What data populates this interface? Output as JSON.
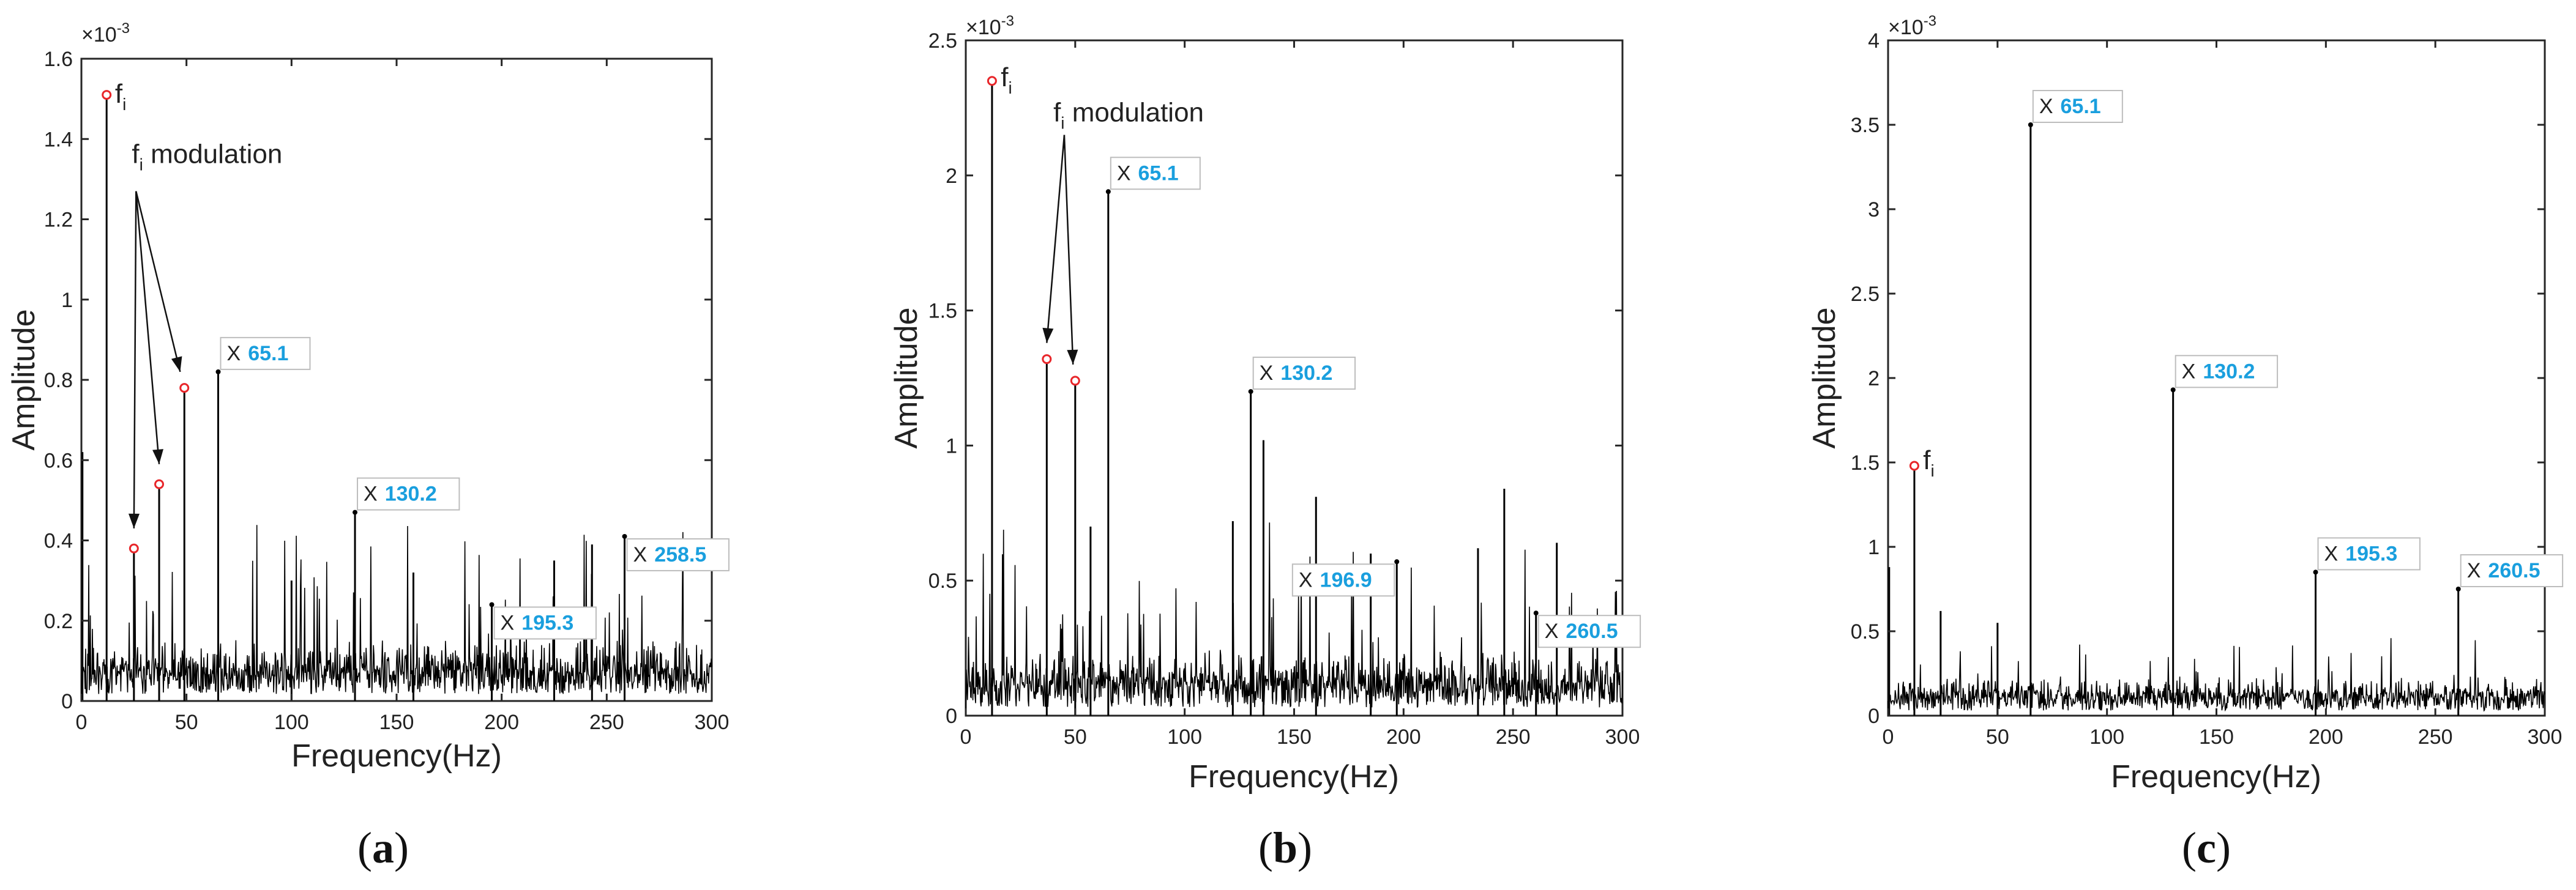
{
  "figure": {
    "panels_order": [
      "a",
      "b",
      "c"
    ]
  },
  "chart_data": [
    {
      "id": "a",
      "type": "line",
      "panel_label": "(a)",
      "xlabel": "Frequency(Hz)",
      "ylabel": "Amplitude",
      "xlim": [
        0,
        300
      ],
      "ylim": [
        0,
        1.6
      ],
      "xticks": [
        0,
        50,
        100,
        150,
        200,
        250,
        300
      ],
      "yticks": [
        0,
        0.2,
        0.4,
        0.6,
        0.8,
        1,
        1.2,
        1.4,
        1.6
      ],
      "ytick_labels": [
        "0",
        "0.2",
        "0.4",
        "0.6",
        "0.8",
        "1",
        "1.2",
        "1.4",
        "1.6"
      ],
      "exponent_label": "×10",
      "exponent_power": "-3",
      "noise": {
        "seed": 11,
        "base": 0.07,
        "spread": 0.11,
        "spike_prob": 0.05,
        "spike_max": 0.36,
        "step": 0.25
      },
      "lines": [
        {
          "x": 12,
          "y": 1.51
        },
        {
          "x": 25,
          "y": 0.38
        },
        {
          "x": 37,
          "y": 0.54
        },
        {
          "x": 49,
          "y": 0.78
        },
        {
          "x": 65.1,
          "y": 0.82
        },
        {
          "x": 130.2,
          "y": 0.47
        },
        {
          "x": 195.3,
          "y": 0.24
        },
        {
          "x": 258.5,
          "y": 0.41
        },
        {
          "x": 0.5,
          "y": 0.62
        },
        {
          "x": 100,
          "y": 0.3
        },
        {
          "x": 225,
          "y": 0.35
        },
        {
          "x": 243,
          "y": 0.39
        },
        {
          "x": 158,
          "y": 0.32
        }
      ],
      "markers": [
        {
          "x": 12,
          "y": 1.51
        },
        {
          "x": 25,
          "y": 0.38
        },
        {
          "x": 37,
          "y": 0.54
        },
        {
          "x": 49,
          "y": 0.78
        }
      ],
      "datatips": [
        {
          "x": 65.1,
          "y": 0.82,
          "label": "65.1",
          "pos": "above-right"
        },
        {
          "x": 130.2,
          "y": 0.47,
          "label": "130.2",
          "pos": "above-right"
        },
        {
          "x": 195.3,
          "y": 0.24,
          "label": "195.3",
          "pos": "below-right"
        },
        {
          "x": 258.5,
          "y": 0.41,
          "label": "258.5",
          "pos": "below-right"
        }
      ],
      "annotations": [
        {
          "kind": "fi",
          "text": "f",
          "sub": "i",
          "x": 16,
          "y": 1.49
        },
        {
          "kind": "mod",
          "text": "f",
          "sub": "i",
          "rest": " modulation",
          "x": 24,
          "y": 1.34,
          "arrows_from": [
            26,
            1.27
          ],
          "arrows_to": [
            [
              25,
              0.43
            ],
            [
              37,
              0.59
            ],
            [
              47,
              0.82
            ]
          ]
        }
      ],
      "datatip_prefix": "X"
    },
    {
      "id": "b",
      "type": "line",
      "panel_label": "(b)",
      "xlabel": "Frequency(Hz)",
      "ylabel": "Amplitude",
      "xlim": [
        0,
        300
      ],
      "ylim": [
        0,
        2.5
      ],
      "xticks": [
        0,
        50,
        100,
        150,
        200,
        250,
        300
      ],
      "yticks": [
        0,
        0.5,
        1,
        1.5,
        2,
        2.5
      ],
      "ytick_labels": [
        "0",
        "0.5",
        "1",
        "1.5",
        "2",
        "2.5"
      ],
      "exponent_label": "×10",
      "exponent_power": "-3",
      "noise": {
        "seed": 23,
        "base": 0.12,
        "spread": 0.16,
        "spike_prob": 0.05,
        "spike_max": 0.5,
        "step": 0.25
      },
      "lines": [
        {
          "x": 12,
          "y": 2.35
        },
        {
          "x": 37,
          "y": 1.32
        },
        {
          "x": 50,
          "y": 1.24
        },
        {
          "x": 65.1,
          "y": 1.94
        },
        {
          "x": 130.2,
          "y": 1.2
        },
        {
          "x": 196.9,
          "y": 0.57
        },
        {
          "x": 260.5,
          "y": 0.38
        },
        {
          "x": 136,
          "y": 1.02
        },
        {
          "x": 122,
          "y": 0.72
        },
        {
          "x": 160,
          "y": 0.81
        },
        {
          "x": 246,
          "y": 0.84
        },
        {
          "x": 185,
          "y": 0.6
        },
        {
          "x": 234,
          "y": 0.62
        },
        {
          "x": 57,
          "y": 0.7
        },
        {
          "x": 270,
          "y": 0.64
        }
      ],
      "markers": [
        {
          "x": 12,
          "y": 2.35
        },
        {
          "x": 37,
          "y": 1.32
        },
        {
          "x": 50,
          "y": 1.24
        }
      ],
      "datatips": [
        {
          "x": 65.1,
          "y": 1.94,
          "label": "65.1",
          "pos": "above-right"
        },
        {
          "x": 130.2,
          "y": 1.2,
          "label": "130.2",
          "pos": "above-right"
        },
        {
          "x": 196.9,
          "y": 0.57,
          "label": "196.9",
          "pos": "below-left"
        },
        {
          "x": 260.5,
          "y": 0.38,
          "label": "260.5",
          "pos": "below-right"
        }
      ],
      "annotations": [
        {
          "kind": "fi",
          "text": "f",
          "sub": "i",
          "x": 16,
          "y": 2.33
        },
        {
          "kind": "mod",
          "text": "f",
          "sub": "i",
          "rest": " modulation",
          "x": 40,
          "y": 2.2,
          "arrows_from": [
            45,
            2.15
          ],
          "arrows_to": [
            [
              37,
              1.38
            ],
            [
              49,
              1.3
            ]
          ]
        }
      ],
      "datatip_prefix": "X"
    },
    {
      "id": "c",
      "type": "line",
      "panel_label": "(c)",
      "xlabel": "Frequency(Hz)",
      "ylabel": "Amplitude",
      "xlim": [
        0,
        300
      ],
      "ylim": [
        0,
        4
      ],
      "xticks": [
        0,
        50,
        100,
        150,
        200,
        250,
        300
      ],
      "yticks": [
        0,
        0.5,
        1,
        1.5,
        2,
        2.5,
        3,
        3.5,
        4
      ],
      "ytick_labels": [
        "0",
        "0.5",
        "1",
        "1.5",
        "2",
        "2.5",
        "3",
        "3.5",
        "4"
      ],
      "exponent_label": "×10",
      "exponent_power": "-3",
      "noise": {
        "seed": 37,
        "base": 0.12,
        "spread": 0.14,
        "spike_prob": 0.04,
        "spike_max": 0.32,
        "step": 0.25
      },
      "lines": [
        {
          "x": 12,
          "y": 1.48
        },
        {
          "x": 65.1,
          "y": 3.5
        },
        {
          "x": 130.2,
          "y": 1.93
        },
        {
          "x": 195.3,
          "y": 0.85
        },
        {
          "x": 260.5,
          "y": 0.75
        },
        {
          "x": 0.5,
          "y": 0.88
        },
        {
          "x": 24,
          "y": 0.62
        },
        {
          "x": 50,
          "y": 0.55
        }
      ],
      "markers": [
        {
          "x": 12,
          "y": 1.48
        }
      ],
      "datatips": [
        {
          "x": 65.1,
          "y": 3.5,
          "label": "65.1",
          "pos": "above-right"
        },
        {
          "x": 130.2,
          "y": 1.93,
          "label": "130.2",
          "pos": "above-right"
        },
        {
          "x": 195.3,
          "y": 0.85,
          "label": "195.3",
          "pos": "above-right"
        },
        {
          "x": 260.5,
          "y": 0.75,
          "label": "260.5",
          "pos": "above-right"
        }
      ],
      "annotations": [
        {
          "kind": "fi",
          "text": "f",
          "sub": "i",
          "x": 16,
          "y": 1.46
        }
      ],
      "datatip_prefix": "X"
    }
  ],
  "colors": {
    "line": "#000000",
    "axis": "#262626",
    "marker": "#e8262a",
    "datatip_value": "#1a9fde",
    "datatip_prefix": "#222222",
    "datatip_bg": "#ffffff",
    "datatip_border": "#bdbdbd"
  }
}
